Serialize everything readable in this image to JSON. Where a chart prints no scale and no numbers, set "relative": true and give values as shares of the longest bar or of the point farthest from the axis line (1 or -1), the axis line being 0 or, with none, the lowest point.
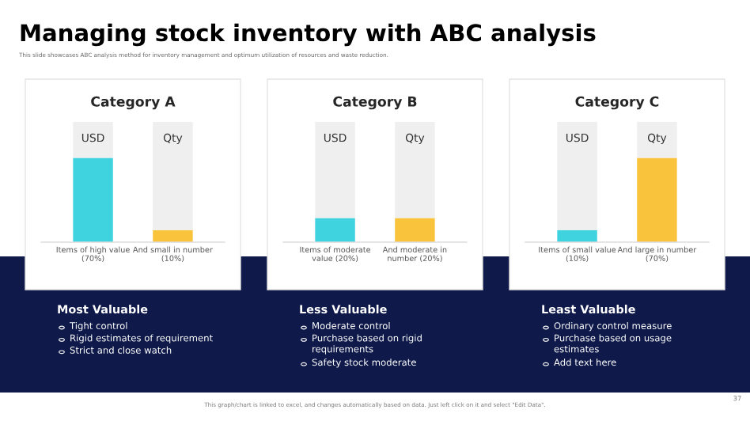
{
  "chart_data": [
    {
      "type": "other",
      "title": "Managing stock inventory with ABC analysis",
      "subtitle": "This slide showcases ABC analysis method for inventory management and optimum utilization of resources and waste reduction.",
      "annotations": [
        "This graph/chart is linked to excel, and changes automatically based on data. Just left click on it and select \"Edit Data\".",
        "37"
      ]
    },
    {
      "type": "bar",
      "title": "Category A",
      "categories": [
        "Items of high value\n(70%)",
        "And small in number\n(10%)"
      ],
      "stacked": true,
      "relative": true,
      "tick_labels": "x",
      "series": [
        {
          "colors": [
            "#3fd3e0",
            "#f9c33c"
          ],
          "values": [
            0.7,
            0.1
          ]
        },
        {
          "color": "#efefef",
          "values": [
            0.3,
            0.9
          ]
        }
      ],
      "annotations": [
        "USD",
        "Qty",
        "Most Valuable",
        "Tight control",
        "Rigid estimates of requirement",
        "Strict and close watch"
      ]
    },
    {
      "type": "bar",
      "title": "Category B",
      "categories": [
        "Items of moderate\nvalue (20%)",
        "And moderate in\nnumber (20%)"
      ],
      "stacked": true,
      "relative": true,
      "tick_labels": "x",
      "series": [
        {
          "colors": [
            "#3fd3e0",
            "#f9c33c"
          ],
          "values": [
            0.2,
            0.2
          ]
        },
        {
          "color": "#efefef",
          "values": [
            0.8,
            0.8
          ]
        }
      ],
      "annotations": [
        "USD",
        "Qty",
        "Less Valuable",
        "Moderate control",
        "Purchase based on rigid\nrequirements",
        "Safety stock moderate"
      ]
    },
    {
      "type": "bar",
      "title": "Category C",
      "categories": [
        "Items of small value\n(10%)",
        "And large in number\n(70%)"
      ],
      "stacked": true,
      "relative": true,
      "tick_labels": "x",
      "series": [
        {
          "colors": [
            "#3fd3e0",
            "#f9c33c"
          ],
          "values": [
            0.1,
            0.7
          ]
        },
        {
          "color": "#efefef",
          "values": [
            0.9,
            0.3
          ]
        }
      ],
      "annotations": [
        "USD",
        "Qty",
        "Least Valuable",
        "Ordinary control measure",
        "Purchase based on usage\nestimates",
        "Add text here"
      ]
    }
  ]
}
